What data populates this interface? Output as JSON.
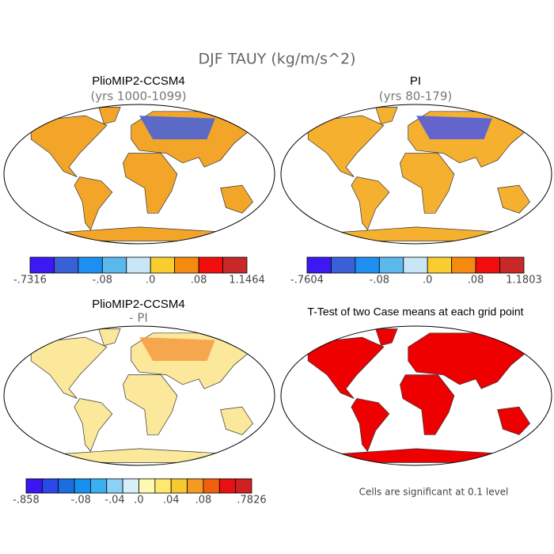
{
  "title": "DJF TAUY (kg/m/s^2)",
  "panels": [
    {
      "title": "PlioMIP2-CCSM4",
      "subtitle": "(yrs 1000-1099)",
      "colorbar": {
        "colors": [
          "#3c18f2",
          "#3a60d8",
          "#1e8ff0",
          "#5ab8ec",
          "#c8e6f5",
          "#f9cd2e",
          "#f58a10",
          "#f20e0e",
          "#c82828"
        ],
        "labels": [
          "-.7316",
          "-.08",
          ".0",
          ".08",
          "1.1464"
        ]
      }
    },
    {
      "title": "PI",
      "subtitle": "(yrs 80-179)",
      "colorbar": {
        "colors": [
          "#3c18f2",
          "#3a60d8",
          "#1e8ff0",
          "#5ab8ec",
          "#c8e6f5",
          "#f9cd2e",
          "#f58a10",
          "#f20e0e",
          "#c82828"
        ],
        "labels": [
          "-.7604",
          "-.08",
          ".0",
          ".08",
          "1.1803"
        ]
      }
    },
    {
      "title": "PlioMIP2-CCSM4",
      "subtitle": "- PI",
      "colorbar": {
        "colors": [
          "#3a16f0",
          "#2848e8",
          "#1c6ee0",
          "#1890f0",
          "#3ab0f0",
          "#8cd0f5",
          "#d8eef8",
          "#fff8b0",
          "#fde870",
          "#f8c830",
          "#f59a20",
          "#f06010",
          "#e81010",
          "#d02020"
        ],
        "labels": [
          "-.858",
          "-.08",
          "-.04",
          ".0",
          ".04",
          ".08",
          ".7826"
        ]
      }
    },
    {
      "title": "T-Test of two Case means at each grid point",
      "note": "Cells are significant at 0.1 level"
    }
  ]
}
